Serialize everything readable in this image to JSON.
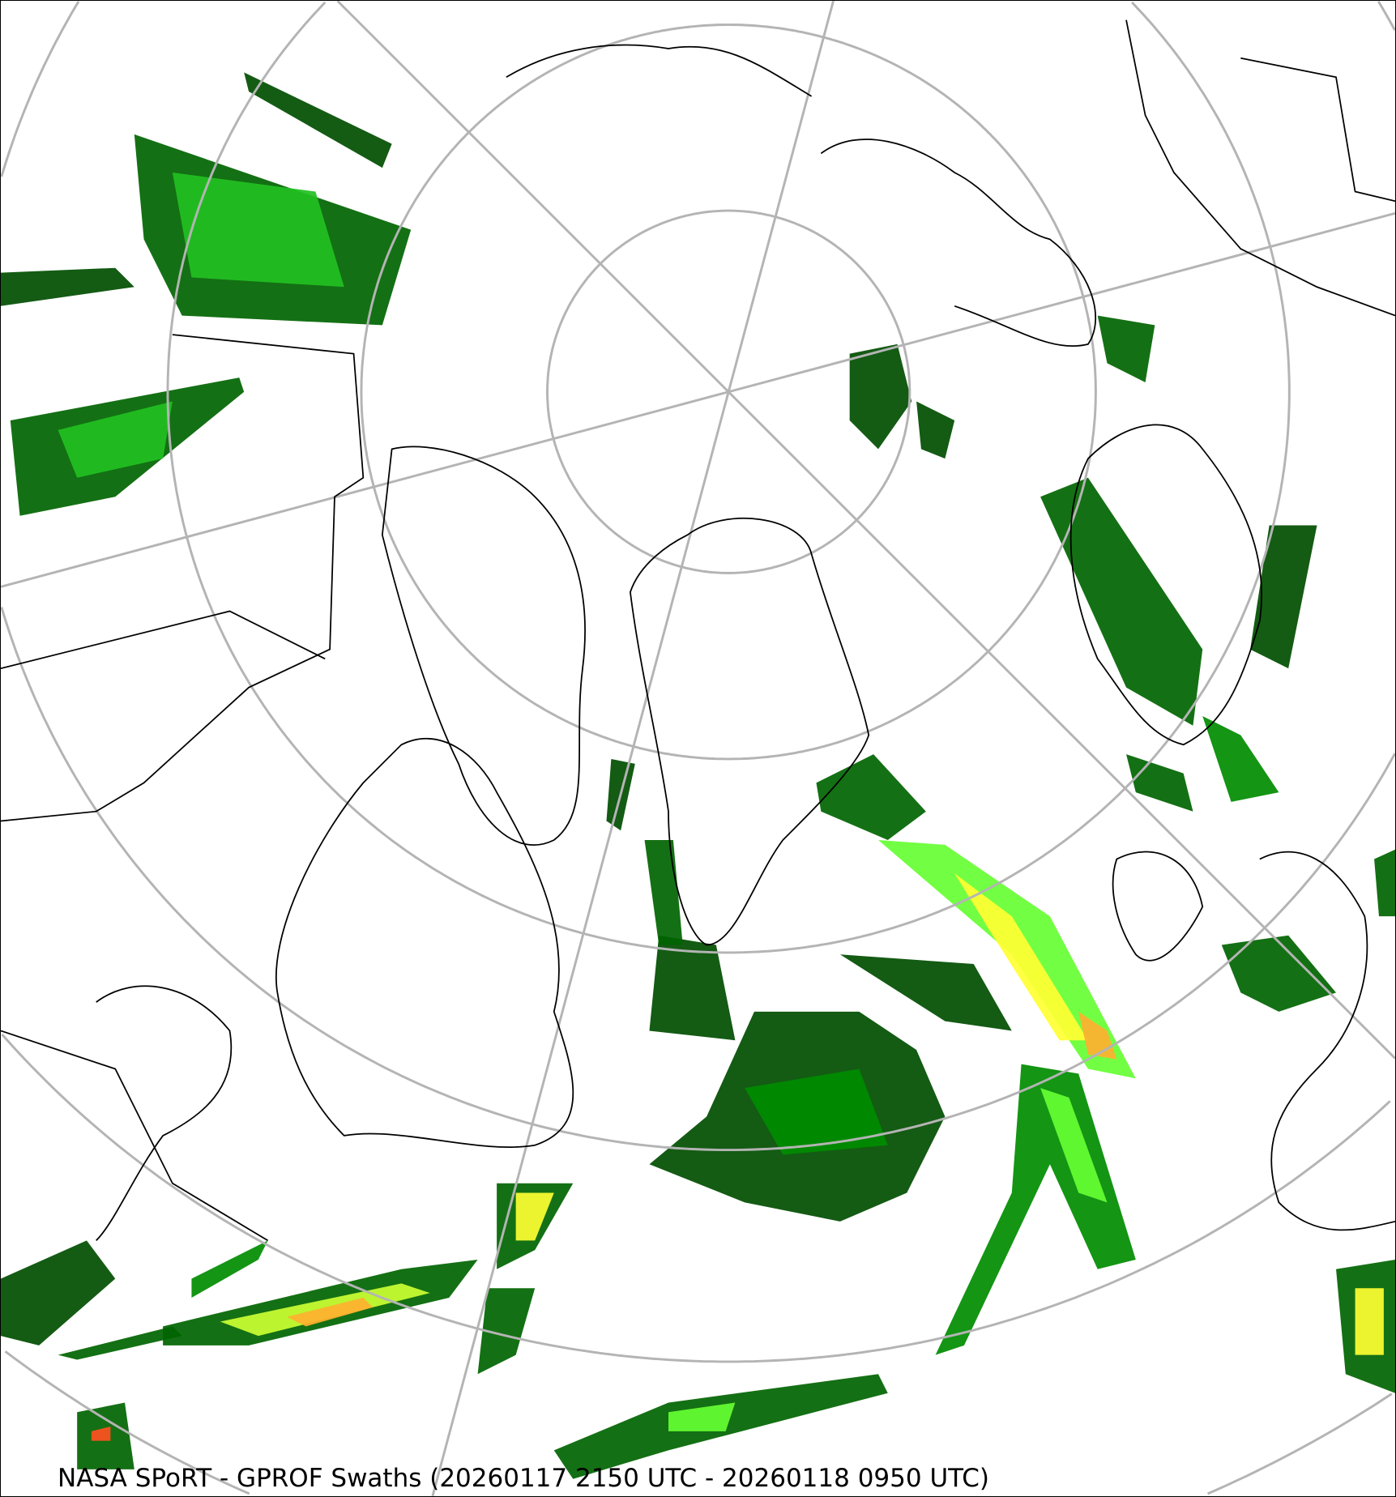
{
  "caption": "NASA SPoRT - GPROF Swaths (20260117 2150 UTC - 20260118 0950 UTC)",
  "map": {
    "projection": "north-polar-stereographic",
    "graticule_color": "#b4b4b4",
    "coastline_color": "#000000",
    "background": "#ffffff",
    "precip_colors": [
      "#004d00",
      "#006400",
      "#008c00",
      "#22c022",
      "#66ff33",
      "#ccff33",
      "#ffff33",
      "#ffb030",
      "#ff5020",
      "#d02020"
    ]
  }
}
